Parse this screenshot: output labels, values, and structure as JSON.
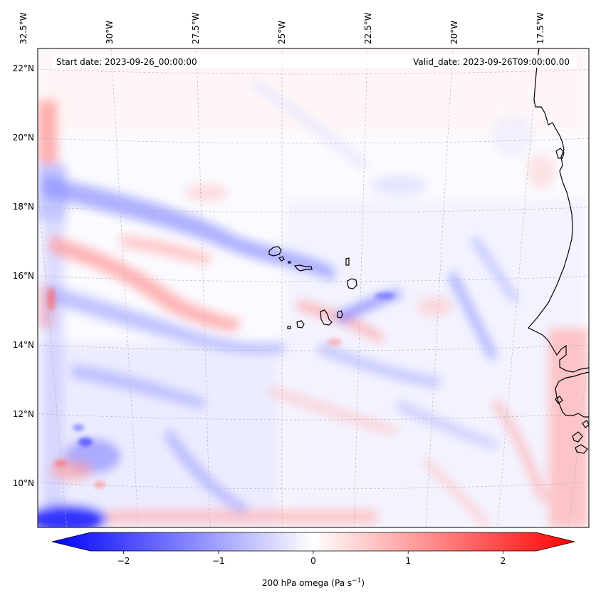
{
  "map": {
    "start_date_text": "Start date: 2023-09-26_00:00:00",
    "valid_date_text": "Valid_date: 2023-09-26T09:00:00.00",
    "lon_ticks": [
      {
        "lon": -32.5,
        "label": "32.5°W"
      },
      {
        "lon": -30.0,
        "label": "30°W"
      },
      {
        "lon": -27.5,
        "label": "27.5°W"
      },
      {
        "lon": -25.0,
        "label": "25°W"
      },
      {
        "lon": -22.5,
        "label": "22.5°W"
      },
      {
        "lon": -20.0,
        "label": "20°W"
      },
      {
        "lon": -17.5,
        "label": "17.5°W"
      }
    ],
    "lat_ticks": [
      {
        "lat": 22,
        "label": "22°N"
      },
      {
        "lat": 20,
        "label": "20°N"
      },
      {
        "lat": 18,
        "label": "18°N"
      },
      {
        "lat": 16,
        "label": "16°N"
      },
      {
        "lat": 14,
        "label": "14°N"
      },
      {
        "lat": 12,
        "label": "12°N"
      },
      {
        "lat": 10,
        "label": "10°N"
      }
    ],
    "colors": {
      "negative": "#0000ff",
      "positive": "#ff0000",
      "neutral": "#ffffff",
      "coastline": "#000000",
      "gridline": "#b0b0b0"
    }
  },
  "colorbar": {
    "label_main": "200 hPa omega (Pa s",
    "label_exp": "−1",
    "label_end": ")",
    "vmin": -2.75,
    "vmax": 2.75,
    "ticks": [
      {
        "value": -2,
        "label": "−2"
      },
      {
        "value": -1,
        "label": "−1"
      },
      {
        "value": 0,
        "label": "0"
      },
      {
        "value": 1,
        "label": "1"
      },
      {
        "value": 2,
        "label": "2"
      }
    ]
  }
}
